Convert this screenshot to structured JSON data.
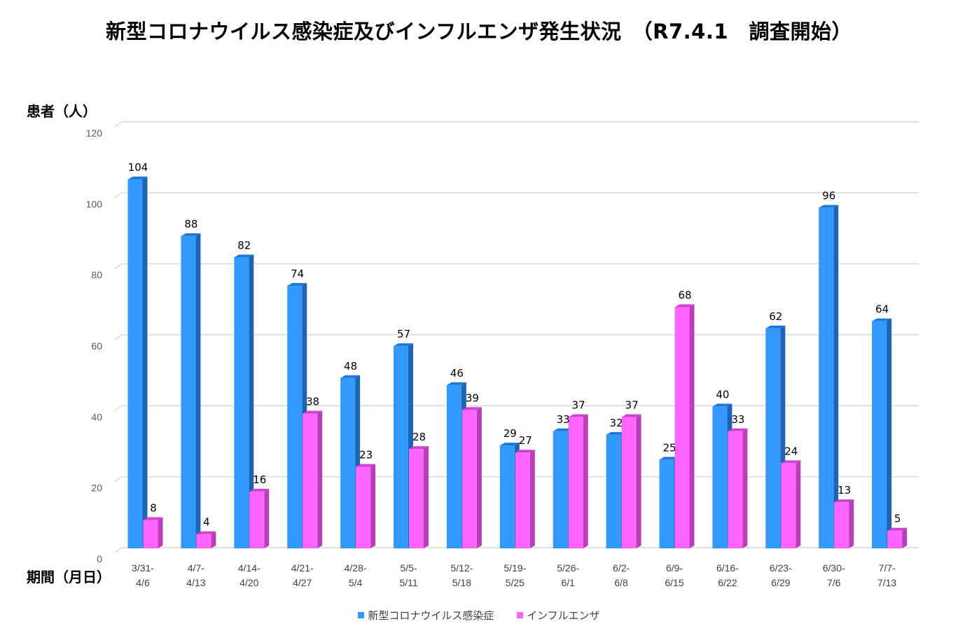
{
  "colors": {
    "covid": "#3399ff",
    "covid_side": "#1f64b4",
    "covid_top": "#1f78d8",
    "flu": "#ff66ff",
    "flu_side": "#b83fb8",
    "flu_top": "#cc44cc",
    "grid": "#d9d9d9"
  },
  "chart_data": {
    "type": "bar",
    "title": "新型コロナウイルス感染症及びインフルエンザ発生状況　（R7.4.1　調査開始）",
    "ylabel": "患者（人）",
    "xlabel": "期間（月日）",
    "ylim": [
      0,
      120
    ],
    "yticks": [
      0,
      20,
      40,
      60,
      80,
      100,
      120
    ],
    "grid": true,
    "legend_position": "bottom",
    "categories": [
      [
        "3/31-",
        "4/6"
      ],
      [
        "4/7-",
        "4/13"
      ],
      [
        "4/14-",
        "4/20"
      ],
      [
        "4/21-",
        "4/27"
      ],
      [
        "4/28-",
        "5/4"
      ],
      [
        "5/5-",
        "5/11"
      ],
      [
        "5/12-",
        "5/18"
      ],
      [
        "5/19-",
        "5/25"
      ],
      [
        "5/26-",
        "6/1"
      ],
      [
        "6/2-",
        "6/8"
      ],
      [
        "6/9-",
        "6/15"
      ],
      [
        "6/16-",
        "6/22"
      ],
      [
        "6/23-",
        "6/29"
      ],
      [
        "6/30-",
        "7/6"
      ],
      [
        "7/7-",
        "7/13"
      ]
    ],
    "series": [
      {
        "name": "新型コロナウイルス感染症",
        "values": [
          104,
          88,
          82,
          74,
          48,
          57,
          46,
          29,
          33,
          32,
          25,
          40,
          62,
          96,
          64
        ]
      },
      {
        "name": "インフルエンザ",
        "values": [
          8,
          4,
          16,
          38,
          23,
          28,
          39,
          27,
          37,
          37,
          68,
          33,
          24,
          13,
          5
        ]
      }
    ]
  }
}
